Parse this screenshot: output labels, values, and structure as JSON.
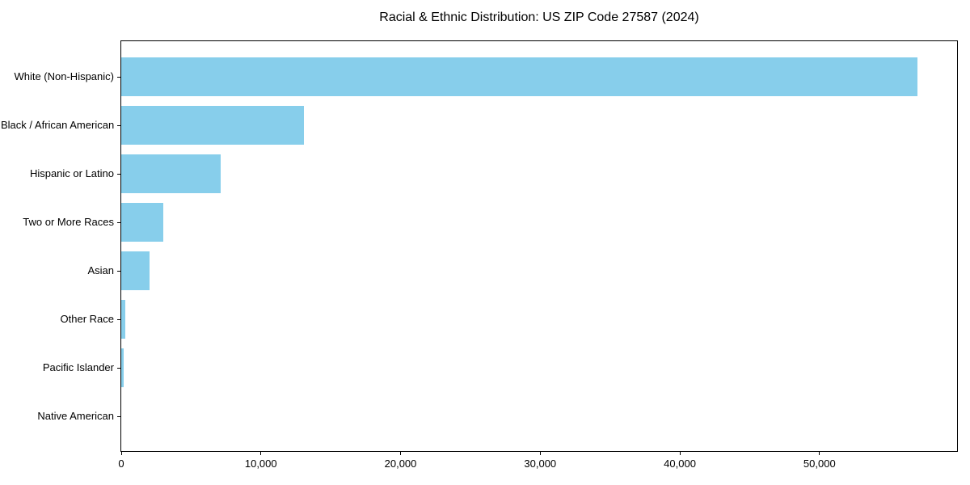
{
  "chart_data": {
    "type": "bar",
    "orientation": "horizontal",
    "title": "Racial & Ethnic Distribution: US ZIP Code 27587 (2024)",
    "xlabel": "",
    "ylabel": "",
    "categories": [
      "White (Non-Hispanic)",
      "Black / African American",
      "Hispanic or Latino",
      "Two or More Races",
      "Asian",
      "Other Race",
      "Pacific Islander",
      "Native American"
    ],
    "values": [
      57000,
      13100,
      7100,
      3000,
      2000,
      300,
      200,
      0
    ],
    "xlim": [
      0,
      59850
    ],
    "x_ticks": [
      0,
      10000,
      20000,
      30000,
      40000,
      50000
    ],
    "x_tick_labels": [
      "0",
      "10,000",
      "20,000",
      "30,000",
      "40,000",
      "50,000"
    ],
    "bar_color": "#87CEEB",
    "grid": false,
    "legend": false,
    "spine_color": "#000000",
    "text_color": "#000000",
    "background_color": "#ffffff"
  }
}
